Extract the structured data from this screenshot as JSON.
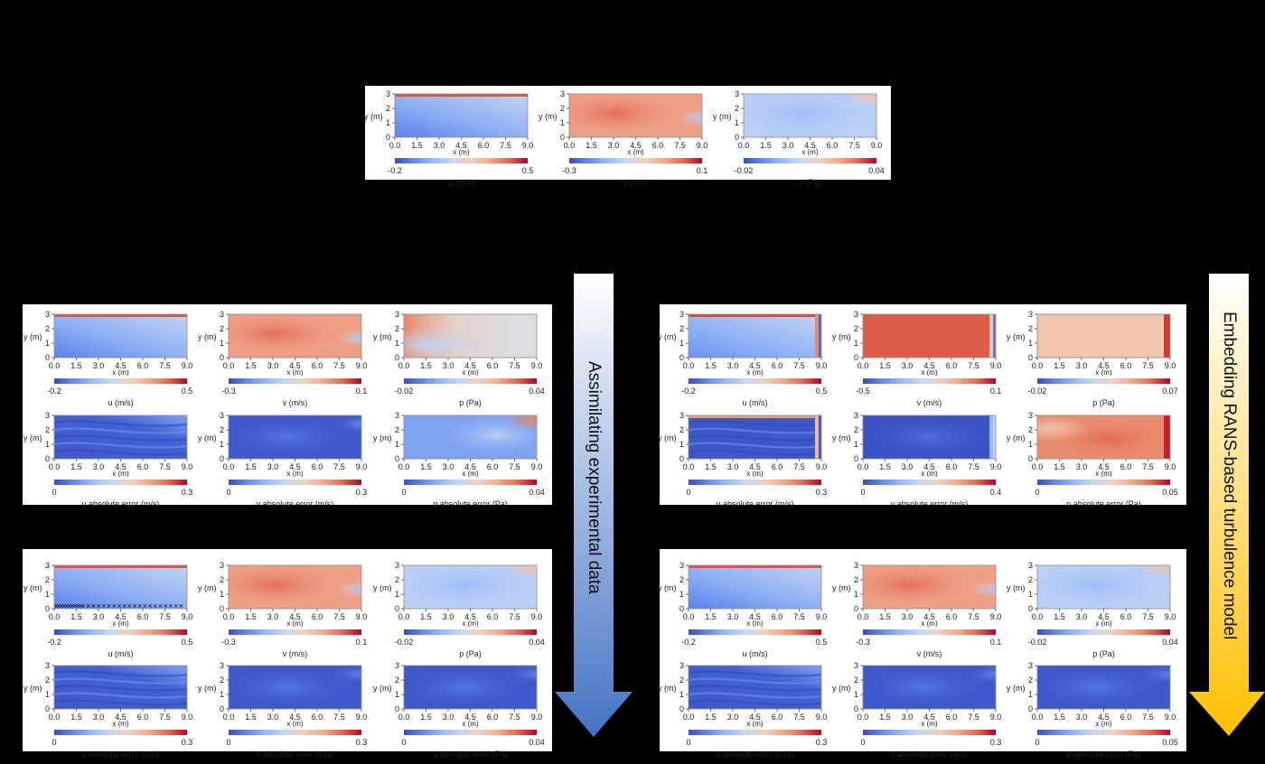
{
  "axis": {
    "ylabel": "y (m)",
    "xlabel": "x (m)",
    "xticks": [
      "0.0",
      "1.5",
      "3.0",
      "4.5",
      "6.0",
      "7.5",
      "9.0"
    ],
    "yticks": [
      "3",
      "2",
      "1",
      "0"
    ]
  },
  "panels": [
    {
      "id": "reference",
      "rows": [
        [
          {
            "field": "u-hor",
            "cbar_label": "u (m/s)",
            "cbar_min": "-0.2",
            "cbar_max": "0.5"
          },
          {
            "field": "v-warm",
            "cbar_label": "v (m/s)",
            "cbar_min": "-0.3",
            "cbar_max": "0.1"
          },
          {
            "field": "p-blue",
            "cbar_label": "p (Pa)",
            "cbar_min": "-0.02",
            "cbar_max": "0.04"
          }
        ]
      ]
    },
    {
      "id": "left-top",
      "rows": [
        [
          {
            "field": "u-hor",
            "cbar_label": "u (m/s)",
            "cbar_min": "-0.2",
            "cbar_max": "0.5"
          },
          {
            "field": "v-warm",
            "cbar_label": "v (m/s)",
            "cbar_min": "-0.3",
            "cbar_max": "0.1"
          },
          {
            "field": "p-grey",
            "cbar_label": "p (Pa)",
            "cbar_min": "-0.02",
            "cbar_max": "0.04"
          }
        ],
        [
          {
            "field": "err-streaks",
            "cbar_label": "u absolute error (m/s)",
            "cbar_min": "0",
            "cbar_max": "0.3"
          },
          {
            "field": "err-deep",
            "cbar_label": "v absolute error (m/s)",
            "cbar_min": "0",
            "cbar_max": "0.3"
          },
          {
            "field": "err-light",
            "cbar_label": "p absolute error (Pa)",
            "cbar_min": "0",
            "cbar_max": "0.04"
          }
        ]
      ]
    },
    {
      "id": "right-top",
      "rows": [
        [
          {
            "field": "u-wall",
            "cbar_label": "u (m/s)",
            "cbar_min": "-0.2",
            "cbar_max": "0.5"
          },
          {
            "field": "v-red",
            "cbar_label": "v (m/s)",
            "cbar_min": "-0.5",
            "cbar_max": "0.1"
          },
          {
            "field": "p-peach",
            "cbar_label": "p (Pa)",
            "cbar_min": "-0.02",
            "cbar_max": "0.07"
          }
        ],
        [
          {
            "field": "err-wall",
            "cbar_label": "u absolute error (m/s)",
            "cbar_min": "0",
            "cbar_max": "0.3"
          },
          {
            "field": "err-deep-wall",
            "cbar_label": "v absolute error (m/s)",
            "cbar_min": "0",
            "cbar_max": "0.4"
          },
          {
            "field": "err-salmon",
            "cbar_label": "p absolute error (Pa)",
            "cbar_min": "0",
            "cbar_max": "0.05"
          }
        ]
      ]
    },
    {
      "id": "left-bottom",
      "rows": [
        [
          {
            "field": "u-hor",
            "cbar_label": "u (m/s)",
            "cbar_min": "-0.2",
            "cbar_max": "0.5",
            "markers": true
          },
          {
            "field": "v-warm",
            "cbar_label": "v (m/s)",
            "cbar_min": "-0.3",
            "cbar_max": "0.1"
          },
          {
            "field": "p-blue",
            "cbar_label": "p (Pa)",
            "cbar_min": "-0.02",
            "cbar_max": "0.04"
          }
        ],
        [
          {
            "field": "err-streaks",
            "cbar_label": "u absolute error (m/s)",
            "cbar_min": "0",
            "cbar_max": "0.3"
          },
          {
            "field": "err-deep",
            "cbar_label": "v absolute error (m/s)",
            "cbar_min": "0",
            "cbar_max": "0.3"
          },
          {
            "field": "err-deep",
            "cbar_label": "p absolute error (Pa)",
            "cbar_min": "0",
            "cbar_max": "0.04"
          }
        ]
      ]
    },
    {
      "id": "right-bottom",
      "rows": [
        [
          {
            "field": "u-hor",
            "cbar_label": "u (m/s)",
            "cbar_min": "-0.2",
            "cbar_max": "0.5"
          },
          {
            "field": "v-warm",
            "cbar_label": "v (m/s)",
            "cbar_min": "-0.3",
            "cbar_max": "0.1"
          },
          {
            "field": "p-blue",
            "cbar_label": "p (Pa)",
            "cbar_min": "-0.02",
            "cbar_max": "0.04"
          }
        ],
        [
          {
            "field": "err-streaks",
            "cbar_label": "u absolute error (m/s)",
            "cbar_min": "0",
            "cbar_max": "0.3"
          },
          {
            "field": "err-deep",
            "cbar_label": "v absolute error (m/s)",
            "cbar_min": "0",
            "cbar_max": "0.3"
          },
          {
            "field": "err-deep",
            "cbar_label": "p absolute error (Pa)",
            "cbar_min": "0",
            "cbar_max": "0.05"
          }
        ]
      ]
    }
  ],
  "arrows": {
    "left_label": "Assimilating experimental data",
    "right_label": "Embedding RANS-based turbulence model"
  },
  "colors": {
    "background": "#000000",
    "colormap_low": "#3b4cc0",
    "colormap_mid": "#dddddd",
    "colormap_high": "#b40426",
    "left_arrow_top": "#ffffff",
    "left_arrow_bottom": "#4472c4",
    "right_arrow_top": "#ffffff",
    "right_arrow_bottom": "#ffc000"
  }
}
